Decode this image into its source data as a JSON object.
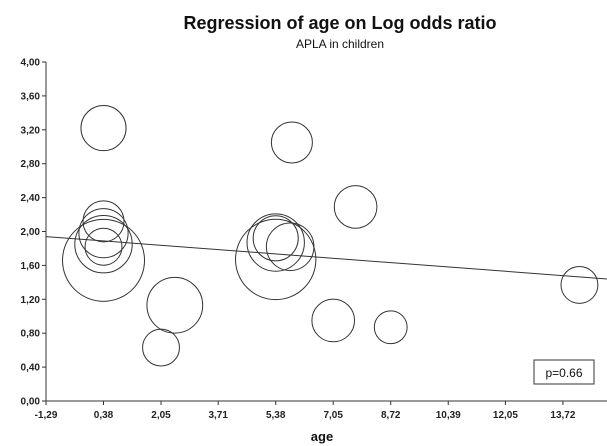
{
  "chart_data": {
    "type": "scatter",
    "title": "Regression of age on Log odds ratio",
    "subtitle": "APLA in children",
    "xlabel": "age",
    "ylabel": "",
    "xlim": [
      -1.29,
      15.0
    ],
    "ylim": [
      0,
      4.0
    ],
    "x_ticks": [
      "-1,29",
      "0,38",
      "2,05",
      "3,71",
      "5,38",
      "7,05",
      "8,72",
      "10,39",
      "12,05",
      "13,72"
    ],
    "x_tick_values": [
      -1.29,
      0.38,
      2.05,
      3.71,
      5.38,
      7.05,
      8.72,
      10.39,
      12.05,
      13.72
    ],
    "y_ticks": [
      "0,00",
      "0,40",
      "0,80",
      "1,20",
      "1,60",
      "2,00",
      "2,40",
      "2,80",
      "3,20",
      "3,60",
      "4,00"
    ],
    "y_tick_values": [
      0,
      0.4,
      0.8,
      1.2,
      1.6,
      2.0,
      2.4,
      2.8,
      3.2,
      3.6,
      4.0
    ],
    "grid": false,
    "points": [
      {
        "x": 0.38,
        "y": 3.22,
        "size": 0.55
      },
      {
        "x": 0.38,
        "y": 2.12,
        "size": 0.5
      },
      {
        "x": 0.38,
        "y": 1.98,
        "size": 0.6
      },
      {
        "x": 0.38,
        "y": 1.85,
        "size": 0.7
      },
      {
        "x": 0.38,
        "y": 1.82,
        "size": 0.45
      },
      {
        "x": 0.38,
        "y": 1.66,
        "size": 1.0
      },
      {
        "x": 2.05,
        "y": 0.63,
        "size": 0.45
      },
      {
        "x": 2.45,
        "y": 1.13,
        "size": 0.68
      },
      {
        "x": 5.38,
        "y": 1.67,
        "size": 0.98
      },
      {
        "x": 5.38,
        "y": 1.87,
        "size": 0.7
      },
      {
        "x": 5.38,
        "y": 1.92,
        "size": 0.55
      },
      {
        "x": 5.8,
        "y": 1.82,
        "size": 0.58
      },
      {
        "x": 5.85,
        "y": 3.05,
        "size": 0.5
      },
      {
        "x": 7.05,
        "y": 0.95,
        "size": 0.52
      },
      {
        "x": 7.7,
        "y": 2.29,
        "size": 0.52
      },
      {
        "x": 8.72,
        "y": 0.87,
        "size": 0.4
      },
      {
        "x": 14.2,
        "y": 1.37,
        "size": 0.45
      }
    ],
    "regression_line": {
      "x": [
        -1.29,
        15.0
      ],
      "y": [
        1.94,
        1.44
      ]
    },
    "annotation": "p=0.66"
  }
}
